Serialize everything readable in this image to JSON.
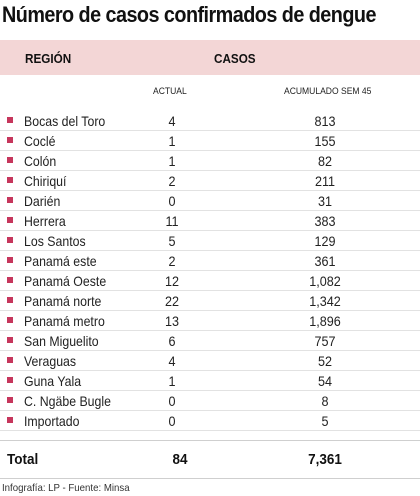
{
  "title": "Número de casos confirmados de dengue",
  "header": {
    "region": "REGIÓN",
    "cases": "CASOS"
  },
  "subheader": {
    "actual": "ACTUAL",
    "accumulated": "ACUMULADO SEM 45"
  },
  "colors": {
    "header_bg": "#f3d6d6",
    "bullet": "#c6365c"
  },
  "chart_data": {
    "type": "table",
    "columns": [
      "REGIÓN",
      "ACTUAL",
      "ACUMULADO SEM 45"
    ],
    "rows": [
      {
        "region": "Bocas del Toro",
        "actual": "4",
        "accumulated": "813"
      },
      {
        "region": "Coclé",
        "actual": "1",
        "accumulated": "155"
      },
      {
        "region": "Colón",
        "actual": "1",
        "accumulated": "82"
      },
      {
        "region": "Chiriquí",
        "actual": "2",
        "accumulated": "211"
      },
      {
        "region": "Darién",
        "actual": "0",
        "accumulated": "31"
      },
      {
        "region": "Herrera",
        "actual": "11",
        "accumulated": "383"
      },
      {
        "region": "Los Santos",
        "actual": "5",
        "accumulated": "129"
      },
      {
        "region": "Panamá este",
        "actual": "2",
        "accumulated": "361"
      },
      {
        "region": "Panamá Oeste",
        "actual": "12",
        "accumulated": "1,082"
      },
      {
        "region": "Panamá norte",
        "actual": "22",
        "accumulated": "1,342"
      },
      {
        "region": "Panamá metro",
        "actual": "13",
        "accumulated": "1,896"
      },
      {
        "region": "San Miguelito",
        "actual": "6",
        "accumulated": "757"
      },
      {
        "region": "Veraguas",
        "actual": "4",
        "accumulated": "52"
      },
      {
        "region": "Guna Yala",
        "actual": "1",
        "accumulated": "54"
      },
      {
        "region": "C. Ngäbe Bugle",
        "actual": "0",
        "accumulated": "8"
      },
      {
        "region": "Importado",
        "actual": "0",
        "accumulated": "5"
      }
    ],
    "total": {
      "label": "Total",
      "actual": "84",
      "accumulated": "7,361"
    }
  },
  "footer": {
    "source": "Infografía: LP - Fuente: Minsa"
  }
}
